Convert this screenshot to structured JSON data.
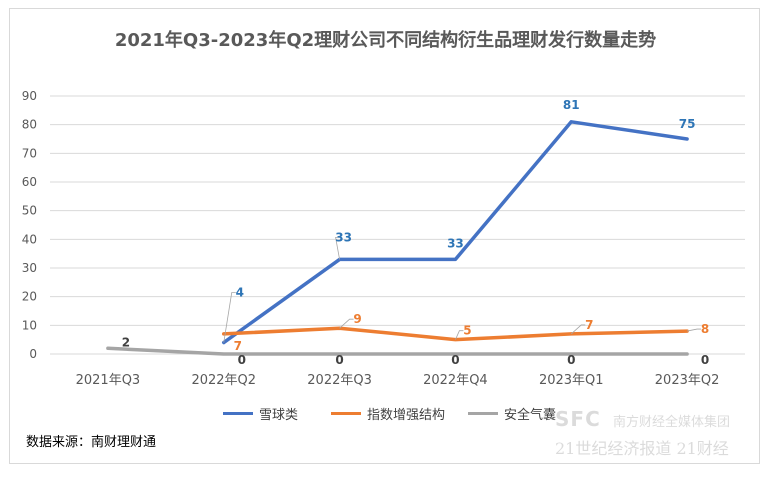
{
  "chart_data": {
    "type": "line",
    "title": "2021年Q3-2023年Q2理财公司不同结构衍生品理财发行数量走势",
    "categories": [
      "2021年Q3",
      "2022年Q2",
      "2022年Q3",
      "2022年Q4",
      "2023年Q1",
      "2023年Q2"
    ],
    "ylim": [
      0,
      90
    ],
    "yticks": [
      0,
      10,
      20,
      30,
      40,
      50,
      60,
      70,
      80,
      90
    ],
    "grid": true,
    "legend_position": "bottom",
    "series": [
      {
        "name": "雪球类",
        "color": "#4472c4",
        "label_color": "#2e75b6",
        "values": [
          null,
          4,
          33,
          33,
          81,
          75
        ]
      },
      {
        "name": "指数增强结构",
        "color": "#ed7d31",
        "label_color": "#ed7d31",
        "values": [
          null,
          7,
          9,
          5,
          7,
          8
        ]
      },
      {
        "name": "安全气囊",
        "color": "#a5a5a5",
        "label_color": "#404040",
        "values": [
          2,
          0,
          0,
          0,
          0,
          0
        ]
      }
    ]
  },
  "source_text": "数据来源：南财理财通",
  "watermark": {
    "line1": "SFC",
    "line1b": "南方财经全媒体集团",
    "line2": "21世纪经济报道  21财经"
  }
}
